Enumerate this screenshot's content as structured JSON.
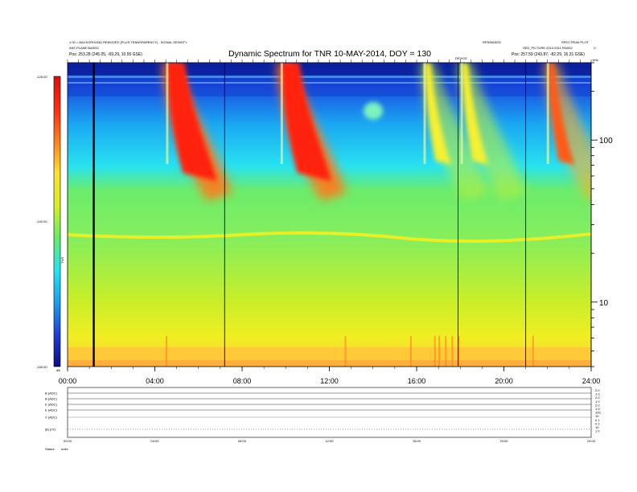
{
  "header": {
    "left_line1": "1.00 = BACKGROUND REMOVED (PLUS TRANSPARENCY) - SIGNAL DENSITY",
    "left_line2": "ANT-PLANE BASED",
    "left_line3": "Pos:  253.28 (245.05, -69.29, 10.55 GSE)",
    "right_top_a": "RFR/BASED",
    "right_top_b": "SPECTRUM PLOT",
    "right_line2": "SED_PICTURE 2014 0311 RNX02",
    "right_line3": "Pos:  257.59 (243.87, -82.29, 16.31 GSE)",
    "mid_marker": "DEVICE",
    "corner_label": "kHz",
    "corner_v": "V"
  },
  "colorbar": {
    "label": "TNR",
    "ticks": [
      "-125.00",
      "-140.00",
      "-155.00"
    ],
    "units_label": "dB",
    "stops": [
      "#0b0b8a",
      "#1f3fd8",
      "#1aa0f0",
      "#22e6f2",
      "#66ec66",
      "#d8ee22",
      "#ffe030",
      "#ff8020",
      "#ff2a12",
      "#d81010"
    ]
  },
  "bottom_panel": {
    "row_labels": [
      "B (ADC)",
      "B (ADC)",
      "E (ADC)",
      "E (ADC)",
      "V (ADC)",
      "|B| (nT)"
    ],
    "right_ticks": [
      "2.0",
      "1.0",
      "2.0",
      "1.0",
      "2.0",
      "1.0",
      "100",
      "10",
      "0.1",
      "0.1",
      "10",
      "1.0"
    ],
    "xticks": [
      "00:00",
      "04:00",
      "08:00",
      "12:00",
      "16:00",
      "20:00",
      "24:00"
    ],
    "footer_a": "Status:",
    "footer_b": "units"
  },
  "chart_data": {
    "type": "heatmap",
    "title": "Dynamic Spectrum for TNR 10-MAY-2014, DOY = 130",
    "xlabel": "",
    "ylabel": "",
    "x_ticks": [
      "00:00",
      "04:00",
      "08:00",
      "12:00",
      "16:00",
      "20:00",
      "24:00"
    ],
    "x_range_hours": [
      0,
      24
    ],
    "y_scale": "log",
    "y_range": [
      4,
      300
    ],
    "y_ticks": [
      100,
      10
    ],
    "colorbar_range": [
      -155,
      -125
    ],
    "grid": false,
    "vertical_lines_hours": [
      1.2,
      7.2,
      17.9,
      21.0
    ],
    "bursts": [
      {
        "start_hour": 4.55,
        "peak": "red"
      },
      {
        "start_hour": 9.8,
        "peak": "red"
      },
      {
        "start_hour": 16.35,
        "peak": "yellow"
      },
      {
        "start_hour": 18.05,
        "peak": "yellow"
      },
      {
        "start_hour": 22.0,
        "peak": "orange"
      }
    ]
  }
}
